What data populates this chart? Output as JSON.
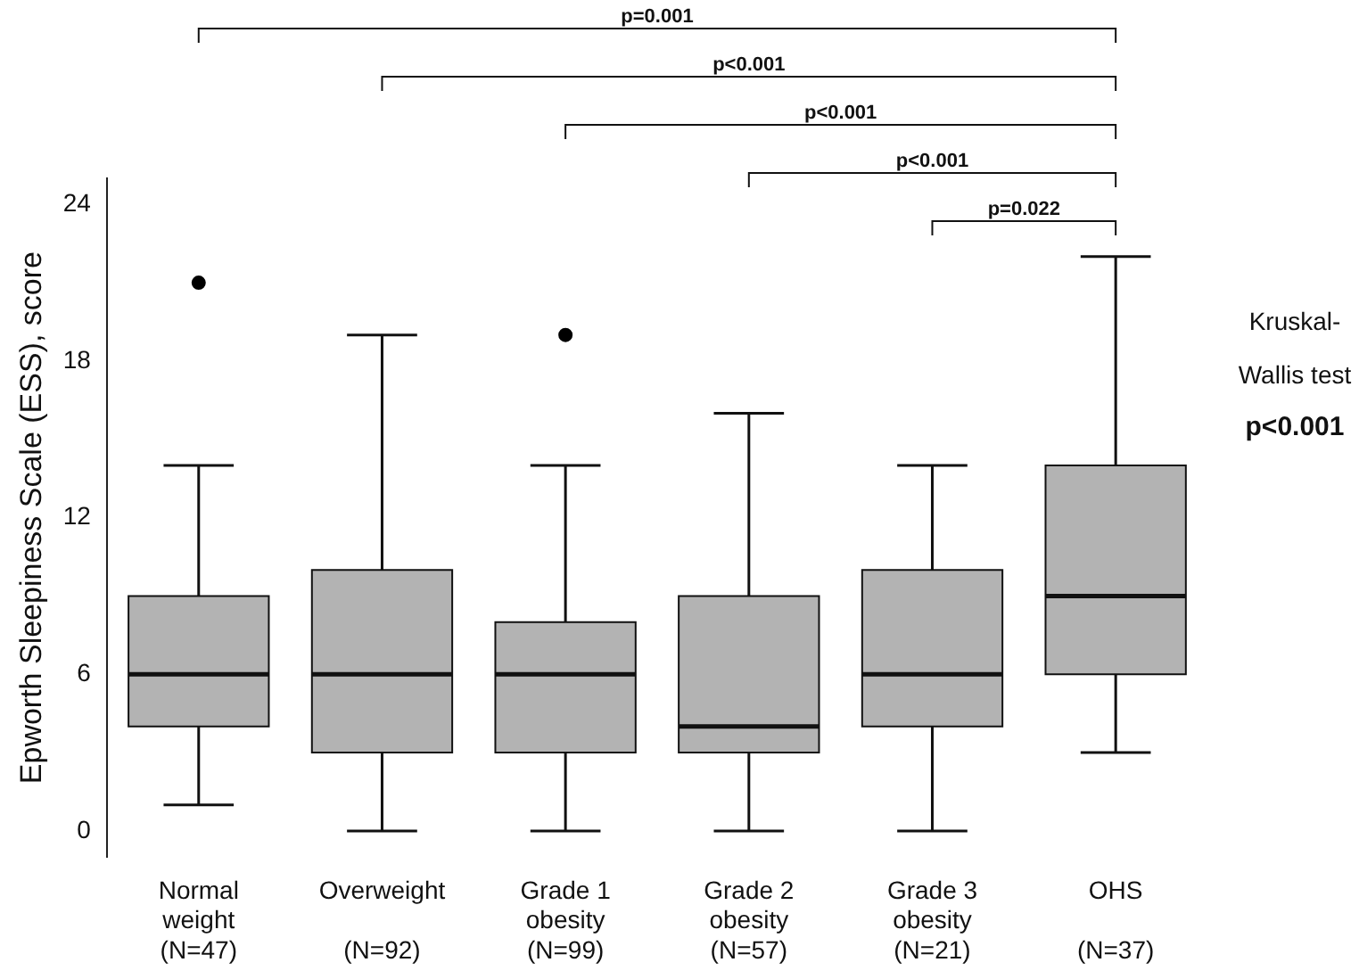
{
  "chart_data": {
    "type": "box",
    "ylabel": "Epworth Sleepiness Scale (ESS), score",
    "categories": [
      "Normal\nweight\n(N=47)",
      "Overweight\n\n(N=92)",
      "Grade 1\nobesity\n(N=99)",
      "Grade 2\nobesity\n(N=57)",
      "Grade 3\nobesity\n(N=21)",
      "OHS\n\n(N=37)"
    ],
    "boxes": [
      {
        "low": 1,
        "q1": 4,
        "median": 6,
        "q3": 9,
        "high": 14,
        "outliers": [
          21
        ]
      },
      {
        "low": 0,
        "q1": 3,
        "median": 6,
        "q3": 10,
        "high": 19
      },
      {
        "low": 0,
        "q1": 3,
        "median": 6,
        "q3": 8,
        "high": 14,
        "outliers": [
          19
        ]
      },
      {
        "low": 0,
        "q1": 3,
        "median": 4,
        "q3": 9,
        "high": 16
      },
      {
        "low": 0,
        "q1": 4,
        "median": 6,
        "q3": 10,
        "high": 14
      },
      {
        "low": 3,
        "q1": 6,
        "median": 9,
        "q3": 14,
        "high": 22
      }
    ],
    "color": "#b3b3b3",
    "ylim": [
      -1,
      25
    ],
    "yticks": [
      0,
      6,
      12,
      18,
      24
    ],
    "grid": false,
    "annotations": [
      "p=0.001",
      "p<0.001",
      "p<0.001",
      "p<0.001",
      "p=0.022",
      "Kruskal-Wallis test",
      "p<0.001"
    ]
  }
}
